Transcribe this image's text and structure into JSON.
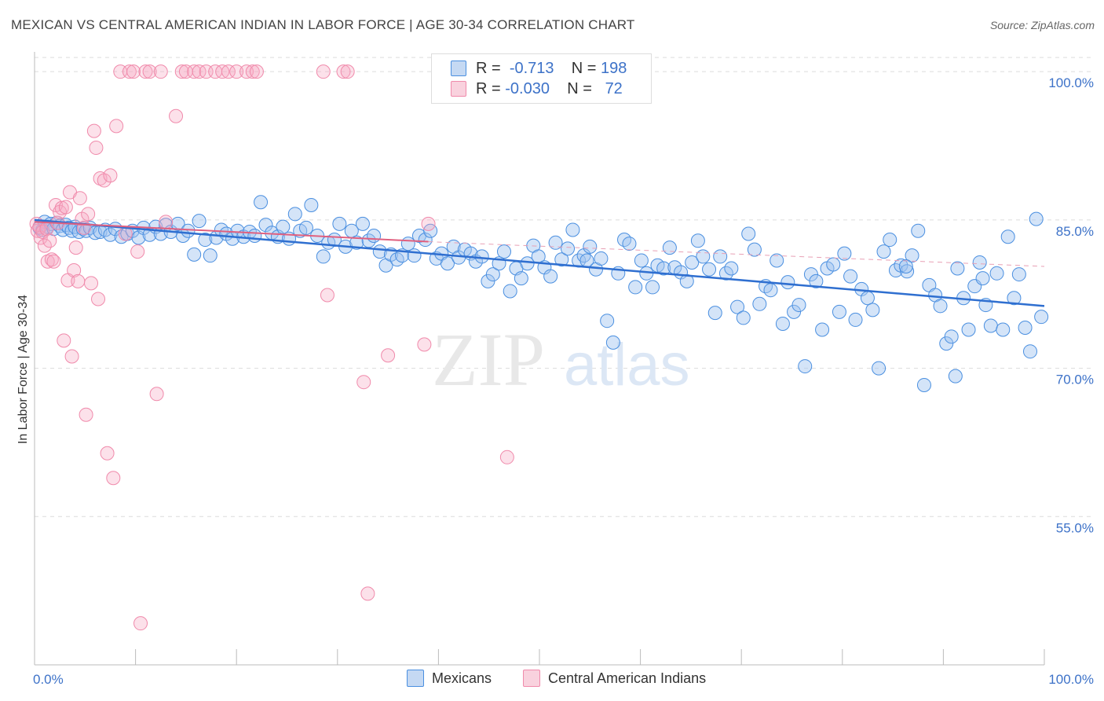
{
  "title": "MEXICAN VS CENTRAL AMERICAN INDIAN IN LABOR FORCE | AGE 30-34 CORRELATION CHART",
  "source": "Source: ZipAtlas.com",
  "watermark": {
    "zip": "ZIP",
    "atlas": "atlas"
  },
  "legend": {
    "rows": [
      {
        "r_label": "R =",
        "r_value": "-0.713",
        "n_label": "N =",
        "n_value": "198",
        "color": "#4a8fe0"
      },
      {
        "r_label": "R =",
        "r_value": "-0.030",
        "n_label": "N =",
        "n_value": "72",
        "color": "#f08aab"
      }
    ]
  },
  "bottom_legend": [
    {
      "label": "Mexicans",
      "color": "#4a8fe0"
    },
    {
      "label": "Central American Indians",
      "color": "#f08aab"
    }
  ],
  "chart_data": {
    "type": "scatter",
    "title": "MEXICAN VS CENTRAL AMERICAN INDIAN IN LABOR FORCE | AGE 30-34 CORRELATION CHART",
    "xlabel": "",
    "ylabel": "In Labor Force | Age 30-34",
    "xlim": [
      0,
      100
    ],
    "ylim": [
      40,
      102
    ],
    "x_tick_labels": [
      "0.0%",
      "100.0%"
    ],
    "y_ticks": [
      55,
      70,
      85,
      100
    ],
    "y_tick_labels": [
      "55.0%",
      "70.0%",
      "85.0%",
      "100.0%"
    ],
    "grid": true,
    "legend_position": "top-center",
    "series": [
      {
        "name": "Mexicans",
        "color": "#4a8fe0",
        "trend": {
          "x": [
            0,
            100
          ],
          "y": [
            85.0,
            76.3
          ],
          "style": "solid"
        },
        "points": [
          [
            0.5,
            84.2
          ],
          [
            0.8,
            84.0
          ],
          [
            1.0,
            84.8
          ],
          [
            1.3,
            84.3
          ],
          [
            1.6,
            84.6
          ],
          [
            1.9,
            84.1
          ],
          [
            2.2,
            84.7
          ],
          [
            2.5,
            84.4
          ],
          [
            2.8,
            84.0
          ],
          [
            3.1,
            84.5
          ],
          [
            3.4,
            84.2
          ],
          [
            3.7,
            83.9
          ],
          [
            4.0,
            84.3
          ],
          [
            4.4,
            83.8
          ],
          [
            4.8,
            84.1
          ],
          [
            5.1,
            83.9
          ],
          [
            5.5,
            84.2
          ],
          [
            6.0,
            83.7
          ],
          [
            6.5,
            83.8
          ],
          [
            7.0,
            84.0
          ],
          [
            7.5,
            83.5
          ],
          [
            8.0,
            84.1
          ],
          [
            8.6,
            83.3
          ],
          [
            9.2,
            83.6
          ],
          [
            9.7,
            83.9
          ],
          [
            10.3,
            83.2
          ],
          [
            10.8,
            84.2
          ],
          [
            11.4,
            83.5
          ],
          [
            12.0,
            84.3
          ],
          [
            12.5,
            83.6
          ],
          [
            13.0,
            84.5
          ],
          [
            13.5,
            83.8
          ],
          [
            14.2,
            84.6
          ],
          [
            14.7,
            83.4
          ],
          [
            15.2,
            83.9
          ],
          [
            15.8,
            81.5
          ],
          [
            16.3,
            84.9
          ],
          [
            16.9,
            83.0
          ],
          [
            17.4,
            81.4
          ],
          [
            18.0,
            83.2
          ],
          [
            18.5,
            84.0
          ],
          [
            19.0,
            83.6
          ],
          [
            19.6,
            83.1
          ],
          [
            20.1,
            83.9
          ],
          [
            20.7,
            83.3
          ],
          [
            21.3,
            83.8
          ],
          [
            21.8,
            83.4
          ],
          [
            22.4,
            86.8
          ],
          [
            22.9,
            84.5
          ],
          [
            23.5,
            83.7
          ],
          [
            24.1,
            83.3
          ],
          [
            24.6,
            84.3
          ],
          [
            25.2,
            83.1
          ],
          [
            25.8,
            85.6
          ],
          [
            26.3,
            83.9
          ],
          [
            26.9,
            84.2
          ],
          [
            27.4,
            86.5
          ],
          [
            28.0,
            83.4
          ],
          [
            28.6,
            81.3
          ],
          [
            29.1,
            82.7
          ],
          [
            29.7,
            83.0
          ],
          [
            30.2,
            84.6
          ],
          [
            30.8,
            82.3
          ],
          [
            31.4,
            83.9
          ],
          [
            31.9,
            82.7
          ],
          [
            32.5,
            84.6
          ],
          [
            33.1,
            82.9
          ],
          [
            33.6,
            83.4
          ],
          [
            34.2,
            81.8
          ],
          [
            34.8,
            80.4
          ],
          [
            35.3,
            81.5
          ],
          [
            35.9,
            81.0
          ],
          [
            36.4,
            81.4
          ],
          [
            37.0,
            82.6
          ],
          [
            37.6,
            81.4
          ],
          [
            38.1,
            83.4
          ],
          [
            38.7,
            83.0
          ],
          [
            39.2,
            83.9
          ],
          [
            39.8,
            81.1
          ],
          [
            40.3,
            81.6
          ],
          [
            40.9,
            80.6
          ],
          [
            41.5,
            82.3
          ],
          [
            42.0,
            81.2
          ],
          [
            42.6,
            82.0
          ],
          [
            43.2,
            81.6
          ],
          [
            43.7,
            80.8
          ],
          [
            44.3,
            81.3
          ],
          [
            44.9,
            78.8
          ],
          [
            45.4,
            79.5
          ],
          [
            46.0,
            80.6
          ],
          [
            46.5,
            81.8
          ],
          [
            47.1,
            77.8
          ],
          [
            47.7,
            80.1
          ],
          [
            48.2,
            79.1
          ],
          [
            48.8,
            80.6
          ],
          [
            49.4,
            82.4
          ],
          [
            49.9,
            81.3
          ],
          [
            50.5,
            80.2
          ],
          [
            51.1,
            79.3
          ],
          [
            51.6,
            82.7
          ],
          [
            52.2,
            81.0
          ],
          [
            52.8,
            82.1
          ],
          [
            53.3,
            84.0
          ],
          [
            53.9,
            80.9
          ],
          [
            54.4,
            81.4
          ],
          [
            55.0,
            82.3
          ],
          [
            55.6,
            80.0
          ],
          [
            56.1,
            81.1
          ],
          [
            56.7,
            74.8
          ],
          [
            57.3,
            72.6
          ],
          [
            57.8,
            79.6
          ],
          [
            58.4,
            83.0
          ],
          [
            58.9,
            82.6
          ],
          [
            59.5,
            78.2
          ],
          [
            60.1,
            80.9
          ],
          [
            60.6,
            79.6
          ],
          [
            61.2,
            78.2
          ],
          [
            61.7,
            80.4
          ],
          [
            62.3,
            80.1
          ],
          [
            62.9,
            82.2
          ],
          [
            63.4,
            80.2
          ],
          [
            64.0,
            79.7
          ],
          [
            64.6,
            78.8
          ],
          [
            65.1,
            80.7
          ],
          [
            65.7,
            82.9
          ],
          [
            66.2,
            81.3
          ],
          [
            66.8,
            80.0
          ],
          [
            67.4,
            75.6
          ],
          [
            67.9,
            81.3
          ],
          [
            68.5,
            79.6
          ],
          [
            69.0,
            80.1
          ],
          [
            69.6,
            76.2
          ],
          [
            70.2,
            75.1
          ],
          [
            70.7,
            83.6
          ],
          [
            71.3,
            82.0
          ],
          [
            71.8,
            76.5
          ],
          [
            72.4,
            78.3
          ],
          [
            72.9,
            77.9
          ],
          [
            73.5,
            80.9
          ],
          [
            74.1,
            74.5
          ],
          [
            74.6,
            78.7
          ],
          [
            75.2,
            75.7
          ],
          [
            75.7,
            76.4
          ],
          [
            76.3,
            70.2
          ],
          [
            76.9,
            79.5
          ],
          [
            77.4,
            78.8
          ],
          [
            78.0,
            73.9
          ],
          [
            78.5,
            80.1
          ],
          [
            79.1,
            80.5
          ],
          [
            79.7,
            75.7
          ],
          [
            80.2,
            81.6
          ],
          [
            80.8,
            79.3
          ],
          [
            81.3,
            74.9
          ],
          [
            81.9,
            78.0
          ],
          [
            82.5,
            77.1
          ],
          [
            83.0,
            75.9
          ],
          [
            83.6,
            70.0
          ],
          [
            84.1,
            81.8
          ],
          [
            84.7,
            83.0
          ],
          [
            85.3,
            79.9
          ],
          [
            85.8,
            80.4
          ],
          [
            86.4,
            79.8
          ],
          [
            86.9,
            81.4
          ],
          [
            87.5,
            83.9
          ],
          [
            88.1,
            68.3
          ],
          [
            88.6,
            78.4
          ],
          [
            89.2,
            77.4
          ],
          [
            89.7,
            76.3
          ],
          [
            90.3,
            72.5
          ],
          [
            90.8,
            73.2
          ],
          [
            91.4,
            80.1
          ],
          [
            92.0,
            77.1
          ],
          [
            92.5,
            73.9
          ],
          [
            93.1,
            78.3
          ],
          [
            93.6,
            80.7
          ],
          [
            94.2,
            76.4
          ],
          [
            94.7,
            74.3
          ],
          [
            95.3,
            79.6
          ],
          [
            95.9,
            73.9
          ],
          [
            96.4,
            83.3
          ],
          [
            97.0,
            77.1
          ],
          [
            97.5,
            79.5
          ],
          [
            98.1,
            74.1
          ],
          [
            98.6,
            71.7
          ],
          [
            99.2,
            85.1
          ],
          [
            99.7,
            75.2
          ],
          [
            54.7,
            80.9
          ],
          [
            93.9,
            79.1
          ],
          [
            86.3,
            80.3
          ],
          [
            91.2,
            69.2
          ]
        ]
      },
      {
        "name": "Central American Indians",
        "color": "#f08aab",
        "trend": {
          "x": [
            0,
            39,
            100
          ],
          "y": [
            84.8,
            82.8,
            80.3
          ],
          "style": "solid-then-dashed"
        },
        "points": [
          [
            0.2,
            84.6
          ],
          [
            0.3,
            83.9
          ],
          [
            0.5,
            84.3
          ],
          [
            0.6,
            83.2
          ],
          [
            0.8,
            83.8
          ],
          [
            1.0,
            82.4
          ],
          [
            1.2,
            84.1
          ],
          [
            1.3,
            80.8
          ],
          [
            1.5,
            82.9
          ],
          [
            1.7,
            81.0
          ],
          [
            1.9,
            80.8
          ],
          [
            2.1,
            86.5
          ],
          [
            2.3,
            84.7
          ],
          [
            2.5,
            85.8
          ],
          [
            2.7,
            86.2
          ],
          [
            2.9,
            72.8
          ],
          [
            3.1,
            86.3
          ],
          [
            3.3,
            78.9
          ],
          [
            3.5,
            87.8
          ],
          [
            3.7,
            71.2
          ],
          [
            3.9,
            79.9
          ],
          [
            4.1,
            82.2
          ],
          [
            4.3,
            78.8
          ],
          [
            4.5,
            87.2
          ],
          [
            4.7,
            85.1
          ],
          [
            4.9,
            84.2
          ],
          [
            5.1,
            65.3
          ],
          [
            5.3,
            85.6
          ],
          [
            5.6,
            78.6
          ],
          [
            5.9,
            94.0
          ],
          [
            6.1,
            92.3
          ],
          [
            6.3,
            77.0
          ],
          [
            6.5,
            89.2
          ],
          [
            6.9,
            89.0
          ],
          [
            7.2,
            61.4
          ],
          [
            7.5,
            89.5
          ],
          [
            7.8,
            58.9
          ],
          [
            8.1,
            94.5
          ],
          [
            8.5,
            100.0
          ],
          [
            9.0,
            83.6
          ],
          [
            9.4,
            100.0
          ],
          [
            9.8,
            100.0
          ],
          [
            10.2,
            81.8
          ],
          [
            10.5,
            44.2
          ],
          [
            11.0,
            100.0
          ],
          [
            11.4,
            100.0
          ],
          [
            12.1,
            67.4
          ],
          [
            12.5,
            100.0
          ],
          [
            13.0,
            84.8
          ],
          [
            14.0,
            95.5
          ],
          [
            14.6,
            100.0
          ],
          [
            15.0,
            100.0
          ],
          [
            15.8,
            100.0
          ],
          [
            16.3,
            100.0
          ],
          [
            17.0,
            100.0
          ],
          [
            17.9,
            100.0
          ],
          [
            18.6,
            100.0
          ],
          [
            19.2,
            100.0
          ],
          [
            20.0,
            100.0
          ],
          [
            21.0,
            100.0
          ],
          [
            21.6,
            100.0
          ],
          [
            22.0,
            100.0
          ],
          [
            28.6,
            100.0
          ],
          [
            29.0,
            77.4
          ],
          [
            30.6,
            100.0
          ],
          [
            31.0,
            100.0
          ],
          [
            32.6,
            68.6
          ],
          [
            33.0,
            47.2
          ],
          [
            35.0,
            71.3
          ],
          [
            38.6,
            72.4
          ],
          [
            39.0,
            84.6
          ],
          [
            46.8,
            61.0
          ]
        ]
      }
    ]
  }
}
